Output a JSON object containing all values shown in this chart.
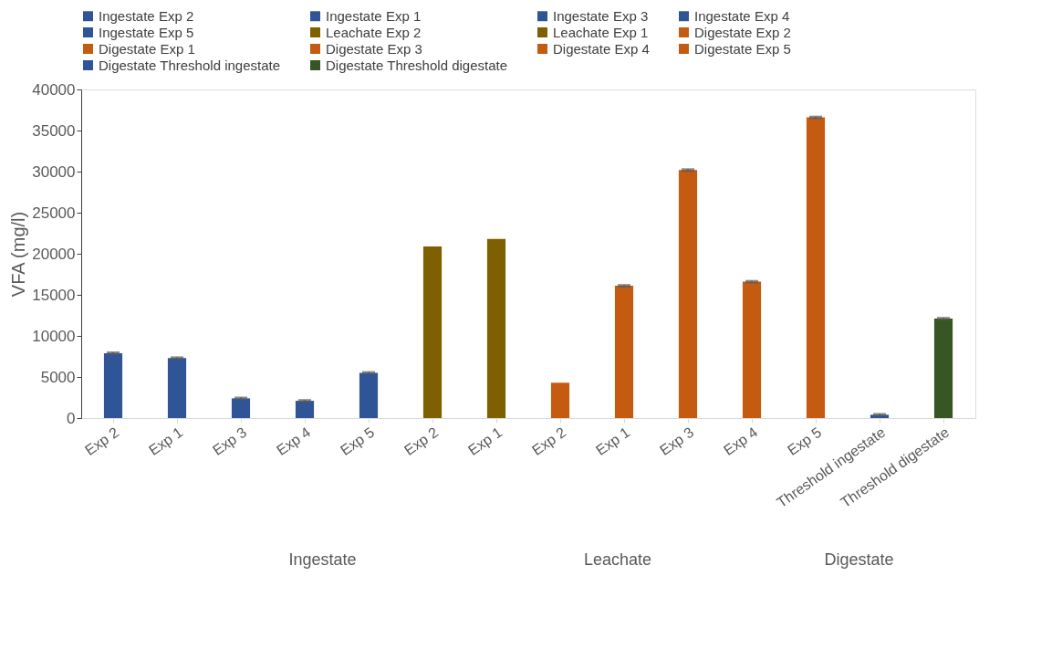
{
  "chart_data": {
    "type": "bar",
    "ylabel": "VFA (mg/l)",
    "categories": [
      "Exp 2",
      "Exp 1",
      "Exp 3",
      "Exp 4",
      "Exp 5",
      "Exp 2",
      "Exp 1",
      "Exp 2",
      "Exp 1",
      "Exp 3",
      "Exp 4",
      "Exp 5",
      "Threshold ingestate",
      "Threshold digestate"
    ],
    "series": [
      {
        "name": "Ingestate Exp 2",
        "color": "#2f5597",
        "values": [
          7900,
          null,
          null,
          null,
          null,
          null,
          null,
          null,
          null,
          null,
          null,
          null,
          null,
          null
        ],
        "errors": [
          100,
          null,
          null,
          null,
          null,
          null,
          null,
          null,
          null,
          null,
          null,
          null,
          null,
          null
        ]
      },
      {
        "name": "Ingestate Exp 1",
        "color": "#2f5597",
        "values": [
          null,
          7300,
          null,
          null,
          null,
          null,
          null,
          null,
          null,
          null,
          null,
          null,
          null,
          null
        ],
        "errors": [
          null,
          100,
          null,
          null,
          null,
          null,
          null,
          null,
          null,
          null,
          null,
          null,
          null,
          null
        ]
      },
      {
        "name": "Ingestate Exp 3",
        "color": "#2f5597",
        "values": [
          null,
          null,
          2400,
          null,
          null,
          null,
          null,
          null,
          null,
          null,
          null,
          null,
          null,
          null
        ],
        "errors": [
          null,
          null,
          100,
          null,
          null,
          null,
          null,
          null,
          null,
          null,
          null,
          null,
          null,
          null
        ]
      },
      {
        "name": "Ingestate Exp 4",
        "color": "#2f5597",
        "values": [
          null,
          null,
          null,
          2100,
          null,
          null,
          null,
          null,
          null,
          null,
          null,
          null,
          null,
          null
        ],
        "errors": [
          null,
          null,
          null,
          100,
          null,
          null,
          null,
          null,
          null,
          null,
          null,
          null,
          null,
          null
        ]
      },
      {
        "name": "Ingestate Exp 5",
        "color": "#2f5597",
        "values": [
          null,
          null,
          null,
          null,
          5500,
          null,
          null,
          null,
          null,
          null,
          null,
          null,
          null,
          null
        ],
        "errors": [
          null,
          null,
          null,
          null,
          100,
          null,
          null,
          null,
          null,
          null,
          null,
          null,
          null,
          null
        ]
      },
      {
        "name": "Leachate Exp 2",
        "color": "#7f6000",
        "values": [
          null,
          null,
          null,
          null,
          null,
          20900,
          null,
          null,
          null,
          null,
          null,
          null,
          null,
          null
        ]
      },
      {
        "name": "Leachate Exp 1",
        "color": "#7f6000",
        "values": [
          null,
          null,
          null,
          null,
          null,
          null,
          21800,
          null,
          null,
          null,
          null,
          null,
          null,
          null
        ]
      },
      {
        "name": "Digestate Exp 2",
        "color": "#c55a11",
        "values": [
          null,
          null,
          null,
          null,
          null,
          null,
          null,
          4300,
          null,
          null,
          null,
          null,
          null,
          null
        ]
      },
      {
        "name": "Digestate Exp 1",
        "color": "#c55a11",
        "values": [
          null,
          null,
          null,
          null,
          null,
          null,
          null,
          null,
          16100,
          null,
          null,
          null,
          null,
          null
        ],
        "errors": [
          null,
          null,
          null,
          null,
          null,
          null,
          null,
          null,
          100,
          null,
          null,
          null,
          null,
          null
        ]
      },
      {
        "name": "Digestate Exp 3",
        "color": "#c55a11",
        "values": [
          null,
          null,
          null,
          null,
          null,
          null,
          null,
          null,
          null,
          30200,
          null,
          null,
          null,
          null
        ],
        "errors": [
          null,
          null,
          null,
          null,
          null,
          null,
          null,
          null,
          null,
          100,
          null,
          null,
          null,
          null
        ]
      },
      {
        "name": "Digestate Exp 4",
        "color": "#c55a11",
        "values": [
          null,
          null,
          null,
          null,
          null,
          null,
          null,
          null,
          null,
          null,
          16600,
          null,
          null,
          null
        ],
        "errors": [
          null,
          null,
          null,
          null,
          null,
          null,
          null,
          null,
          null,
          null,
          100,
          null,
          null,
          null
        ]
      },
      {
        "name": "Digestate Exp 5",
        "color": "#c55a11",
        "values": [
          null,
          null,
          null,
          null,
          null,
          null,
          null,
          null,
          null,
          null,
          null,
          36600,
          null,
          null
        ],
        "errors": [
          null,
          null,
          null,
          null,
          null,
          null,
          null,
          null,
          null,
          null,
          null,
          100,
          null,
          null
        ]
      },
      {
        "name": "Digestate Threshold ingestate",
        "color": "#2f5597",
        "values": [
          null,
          null,
          null,
          null,
          null,
          null,
          null,
          null,
          null,
          null,
          null,
          null,
          400,
          null
        ],
        "errors": [
          null,
          null,
          null,
          null,
          null,
          null,
          null,
          null,
          null,
          null,
          null,
          null,
          100,
          null
        ]
      },
      {
        "name": "Digestate Threshold digestate",
        "color": "#375623",
        "values": [
          null,
          null,
          null,
          null,
          null,
          null,
          null,
          null,
          null,
          null,
          null,
          null,
          null,
          12100
        ],
        "errors": [
          null,
          null,
          null,
          null,
          null,
          null,
          null,
          null,
          null,
          null,
          null,
          null,
          null,
          100
        ]
      }
    ],
    "ylim": [
      0,
      40000
    ],
    "yticks": [
      0,
      5000,
      10000,
      15000,
      20000,
      25000,
      30000,
      35000,
      40000
    ],
    "grid": false,
    "legend": "top",
    "annotations": [
      "Ingestate",
      "Leachate",
      "Digestate"
    ]
  }
}
